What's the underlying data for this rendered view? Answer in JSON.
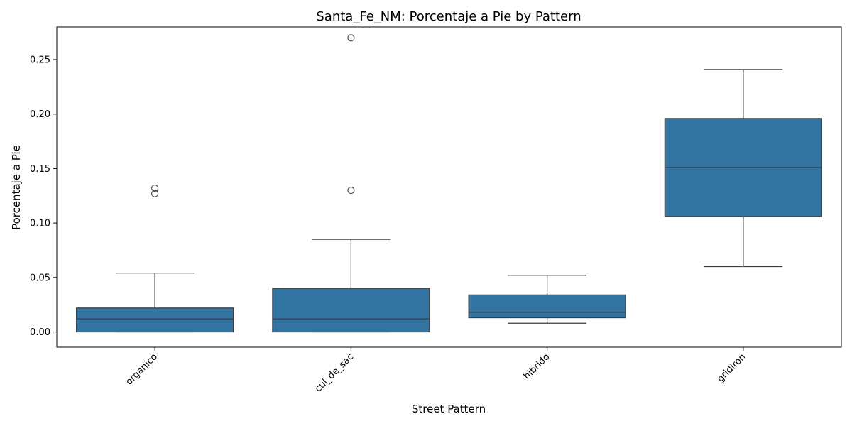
{
  "chart_data": {
    "type": "box",
    "title": "Santa_Fe_NM: Porcentaje a Pie by Pattern",
    "xlabel": "Street Pattern",
    "ylabel": "Porcentaje a Pie",
    "ylim": [
      -0.014,
      0.28
    ],
    "yticks": [
      "0.00",
      "0.05",
      "0.10",
      "0.15",
      "0.20",
      "0.25"
    ],
    "ytick_values": [
      0,
      0.05,
      0.1,
      0.15,
      0.2,
      0.25
    ],
    "categories": [
      "organico",
      "cul_de_sac",
      "hibrido",
      "gridiron"
    ],
    "box_color": "#3274a1",
    "line_color": "#3d3d3d",
    "grid": false,
    "legend": "none",
    "boxes": [
      {
        "category": "organico",
        "whisker_low": 0.0,
        "q1": 0.0,
        "median": 0.012,
        "q3": 0.022,
        "whisker_high": 0.054,
        "outliers": [
          0.127,
          0.132
        ]
      },
      {
        "category": "cul_de_sac",
        "whisker_low": 0.0,
        "q1": 0.0,
        "median": 0.012,
        "q3": 0.04,
        "whisker_high": 0.085,
        "outliers": [
          0.13,
          0.27
        ]
      },
      {
        "category": "hibrido",
        "whisker_low": 0.008,
        "q1": 0.013,
        "median": 0.018,
        "q3": 0.034,
        "whisker_high": 0.052,
        "outliers": []
      },
      {
        "category": "gridiron",
        "whisker_low": 0.06,
        "q1": 0.106,
        "median": 0.151,
        "q3": 0.196,
        "whisker_high": 0.241,
        "outliers": []
      }
    ]
  }
}
